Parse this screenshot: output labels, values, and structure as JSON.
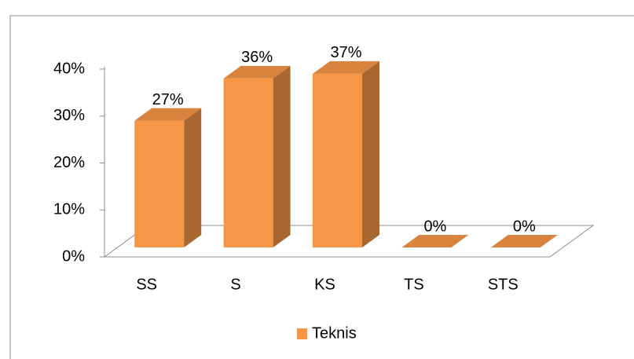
{
  "chart_data": {
    "type": "bar3d",
    "categories": [
      "SS",
      "S",
      "KS",
      "TS",
      "STS"
    ],
    "series": [
      {
        "name": "Teknis",
        "color": "#f79646",
        "values": [
          27,
          36,
          37,
          0,
          0
        ],
        "value_labels": [
          "27%",
          "36%",
          "37%",
          "0%",
          "0%"
        ]
      }
    ],
    "ylim": [
      0,
      40
    ],
    "yticks": [
      {
        "value": 0,
        "label": "0%"
      },
      {
        "value": 10,
        "label": "10%"
      },
      {
        "value": 20,
        "label": "20%"
      },
      {
        "value": 30,
        "label": "30%"
      },
      {
        "value": 40,
        "label": "40%"
      }
    ],
    "legend": "bottom"
  }
}
